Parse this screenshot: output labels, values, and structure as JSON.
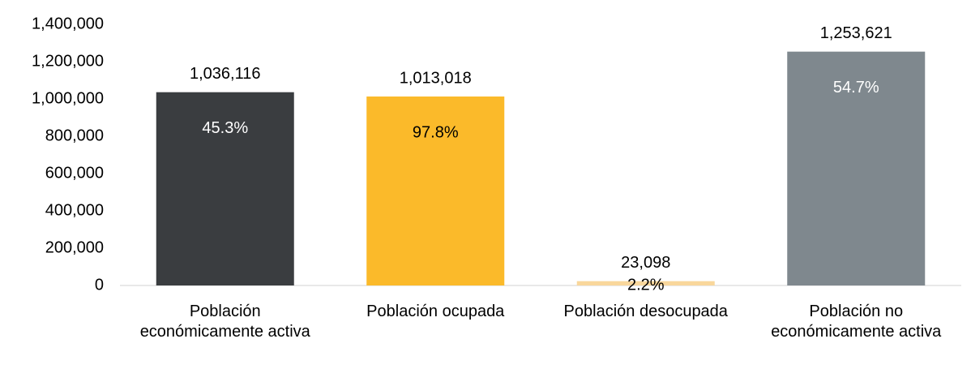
{
  "chart_data": {
    "type": "bar",
    "categories": [
      "Población económicamente activa",
      "Población ocupada",
      "Población desocupada",
      "Población no económicamente activa"
    ],
    "values": [
      1036116,
      1013018,
      23098,
      1253621
    ],
    "value_labels": [
      "1,036,116",
      "1,013,018",
      "23,098",
      "1,253,621"
    ],
    "share_labels": [
      "45.3%",
      "97.8%",
      "2.2%",
      "54.7%"
    ],
    "colors": [
      "#3a3d40",
      "#fbba2a",
      "#f9d79c",
      "#7f888e"
    ],
    "share_label_colors": [
      "#ffffff",
      "#000000",
      "#000000",
      "#ffffff"
    ],
    "ylim": [
      0,
      1400000
    ],
    "yticks": [
      {
        "value": 0,
        "label": "0"
      },
      {
        "value": 200000,
        "label": "200,000"
      },
      {
        "value": 400000,
        "label": "400,000"
      },
      {
        "value": 600000,
        "label": "600,000"
      },
      {
        "value": 800000,
        "label": "800,000"
      },
      {
        "value": 1000000,
        "label": "1,000,000"
      },
      {
        "value": 1200000,
        "label": "1,200,000"
      },
      {
        "value": 1400000,
        "label": "1,400,000"
      }
    ],
    "grid": false
  }
}
